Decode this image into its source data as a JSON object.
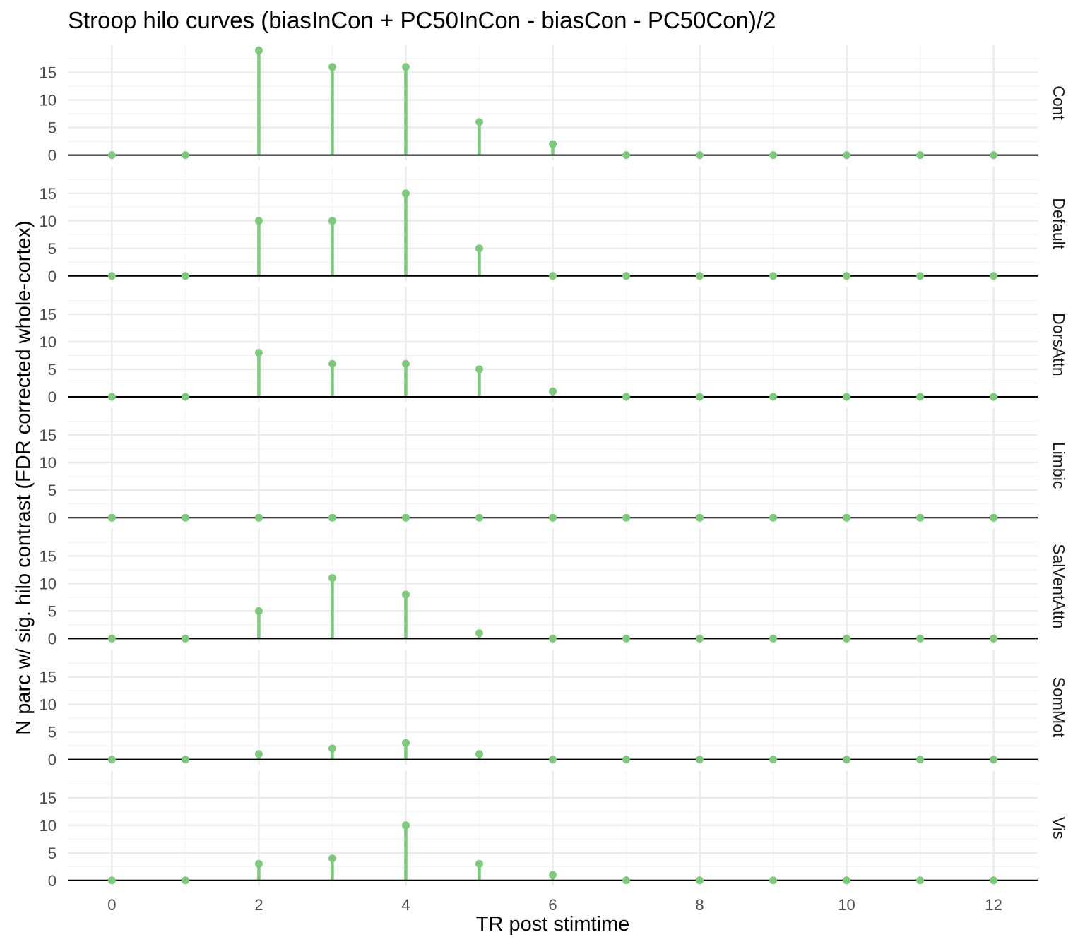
{
  "chart_data": {
    "type": "lollipop",
    "title": "Stroop hilo curves (biasInCon + PC50InCon - biasCon - PC50Con)/2",
    "xlabel": "TR post stimtime",
    "ylabel": "N parc w/ sig. hilo contrast (FDR corrected whole-cortex)",
    "x": [
      0,
      1,
      2,
      3,
      4,
      5,
      6,
      7,
      8,
      9,
      10,
      11,
      12
    ],
    "xticks": [
      "0",
      "2",
      "4",
      "6",
      "8",
      "10",
      "12"
    ],
    "yticks": [
      "0",
      "5",
      "10",
      "15"
    ],
    "xlim": [
      -0.6,
      12.6
    ],
    "ylim": [
      -0.95,
      19.95
    ],
    "grid": true,
    "color": "#7fc97f",
    "panels": [
      {
        "name": "Cont",
        "values": [
          0,
          0,
          19,
          16,
          16,
          6,
          2,
          0,
          0,
          0,
          0,
          0,
          0
        ]
      },
      {
        "name": "Default",
        "values": [
          0,
          0,
          10,
          10,
          15,
          5,
          0,
          0,
          0,
          0,
          0,
          0,
          0
        ]
      },
      {
        "name": "DorsAttn",
        "values": [
          0,
          0,
          8,
          6,
          6,
          5,
          1,
          0,
          0,
          0,
          0,
          0,
          0
        ]
      },
      {
        "name": "Limbic",
        "values": [
          0,
          0,
          0,
          0,
          0,
          0,
          0,
          0,
          0,
          0,
          0,
          0,
          0
        ]
      },
      {
        "name": "SalVentAttn",
        "values": [
          0,
          0,
          5,
          11,
          8,
          1,
          0,
          0,
          0,
          0,
          0,
          0,
          0
        ]
      },
      {
        "name": "SomMot",
        "values": [
          0,
          0,
          1,
          2,
          3,
          1,
          0,
          0,
          0,
          0,
          0,
          0,
          0
        ]
      },
      {
        "name": "Vis",
        "values": [
          0,
          0,
          3,
          4,
          10,
          3,
          1,
          0,
          0,
          0,
          0,
          0,
          0
        ]
      }
    ]
  }
}
